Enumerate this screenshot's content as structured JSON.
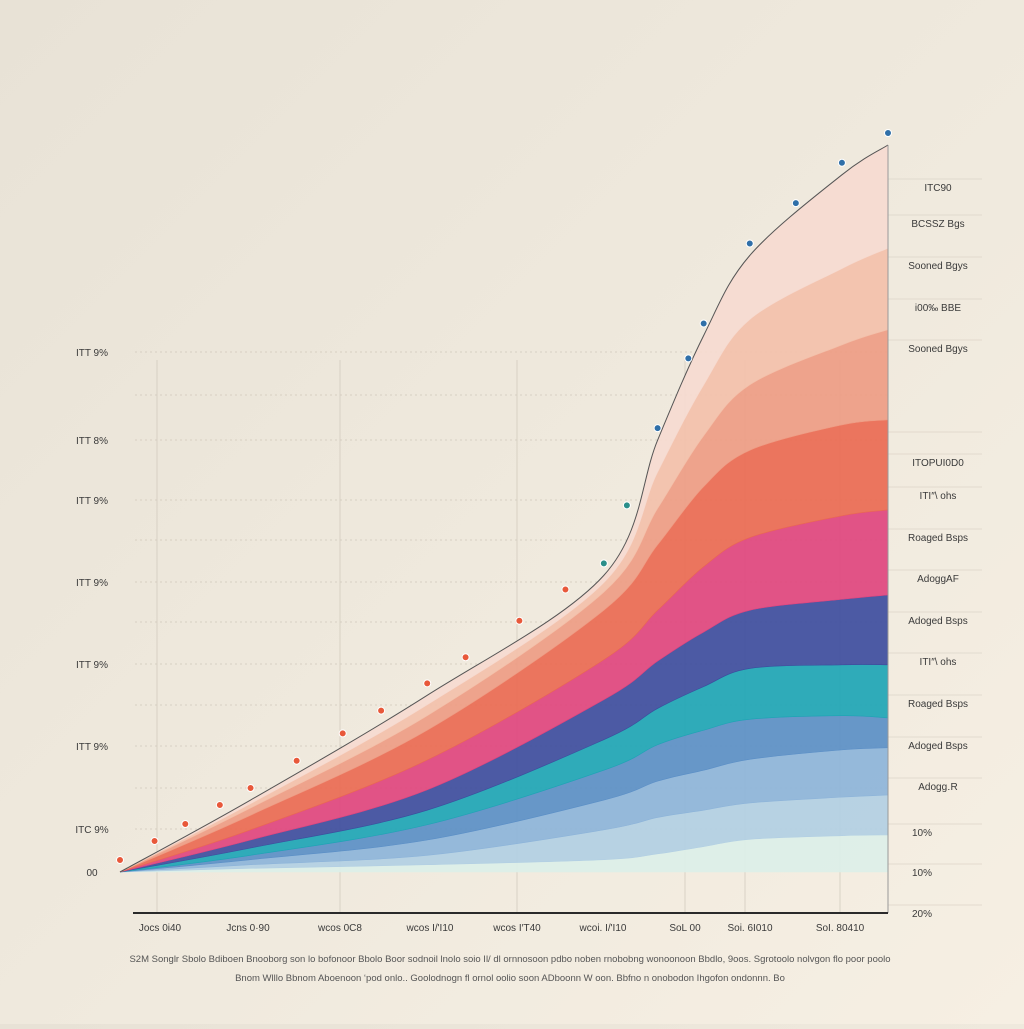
{
  "chart_data": {
    "type": "area",
    "stacked": true,
    "title": "",
    "xlabel": "",
    "ylabel": "",
    "x": [
      0,
      17,
      40,
      63,
      70,
      76,
      82,
      94,
      100
    ],
    "xlim": [
      0,
      100
    ],
    "ylim": [
      0,
      100
    ],
    "grid": true,
    "x_tick_labels": [
      "Jocs 0i40",
      "Jcns 0·90",
      "wcos 0C8",
      "wcos I/'I10",
      "wcos I′T40",
      "wcoi. I/'I10",
      "SoL 00",
      "Soi. 6I010",
      "SoI. 80410"
    ],
    "y_tick_labels_left": [
      "ITT 9%",
      "ITT 8%",
      "ITT 9%",
      "ITT 9%",
      "ITT 9%",
      "ITT 9%",
      "ITC 9%",
      "00"
    ],
    "right_labels": [
      "ITC90",
      "BCSSZ Bgs",
      "Sooned Bgys",
      "i00‰ BBE",
      "Sooned Bgys",
      "ITOPUI0D0",
      "ITI″\\ ohs",
      "Roaged Bsps",
      "AdoggAF",
      "Adoged Bsps",
      "ITI″\\ ohs",
      "Roaged Bsps",
      "Adoged Bsps",
      "Adogg․R",
      "10%",
      "10%",
      "20%"
    ],
    "series": [
      {
        "name": "base",
        "color": "#dcefe8",
        "values": [
          0,
          0.5,
          1,
          1.7,
          2.5,
          3.5,
          4.5,
          5,
          5.1
        ]
      },
      {
        "name": "light-blue",
        "color": "#b2cfe3",
        "values": [
          0,
          0.5,
          1.3,
          4.1,
          5,
          5,
          5,
          5.3,
          5.5
        ]
      },
      {
        "name": "sky-blue",
        "color": "#8db4d9",
        "values": [
          0,
          0.7,
          2.1,
          4.1,
          5,
          5.5,
          6,
          6.5,
          6.5
        ]
      },
      {
        "name": "mid-blue",
        "color": "#5b8fc6",
        "values": [
          0,
          0.6,
          2.1,
          4.1,
          5,
          5.5,
          5.5,
          4.7,
          4.1
        ]
      },
      {
        "name": "teal",
        "color": "#1ea5b5",
        "values": [
          0,
          1,
          2,
          4.2,
          5,
          6,
          7,
          7,
          7.3
        ]
      },
      {
        "name": "navy",
        "color": "#3e4d9e",
        "values": [
          0,
          1.1,
          2.8,
          5.5,
          6.5,
          7.5,
          8,
          9,
          9.6
        ]
      },
      {
        "name": "pink",
        "color": "#e0457e",
        "values": [
          0,
          1.4,
          4.1,
          5.5,
          7,
          9,
          10,
          11.5,
          11.7
        ]
      },
      {
        "name": "red-salmon",
        "color": "#ea6a52",
        "values": [
          0,
          2,
          4.1,
          6.8,
          9,
          11,
          12,
          12.5,
          12.4
        ]
      },
      {
        "name": "salmon",
        "color": "#ee9c84",
        "values": [
          0,
          1,
          2,
          2.5,
          5,
          7,
          9,
          11,
          12.4
        ]
      },
      {
        "name": "peach",
        "color": "#f3c0aa",
        "values": [
          0,
          0.6,
          1.5,
          1.3,
          5,
          7,
          9,
          10.5,
          11.2
        ]
      },
      {
        "name": "pale-pink",
        "color": "#f6dad0",
        "values": [
          0,
          0.5,
          1.3,
          1.0,
          4.4,
          6.8,
          8.8,
          12.9,
          14.2
        ]
      }
    ],
    "markers_x": [
      0,
      4.5,
      8.5,
      13,
      17,
      23,
      29,
      34,
      40,
      45,
      52,
      58,
      63,
      66,
      70,
      74,
      76,
      82,
      88,
      94,
      100
    ]
  },
  "footnote": {
    "line1": "S2M Songlr Sbolo Bdiboen Bnooborg son lo bofonoor Bbolo Boor sodnoil lnolo soio Il/ dl ornnosoon pdbo noben rnobobng wonoonoon Bbdlo, 9oos. Sgrotoolo nolvgon flo poor poolo",
    "line2": "Bnom Wlllo Bbnom Aboenoon ‘pod onlo.. Goolodnogn fl ornol oolio soon ADboonn W oon. Bbfno n onobodon Ihgofon ondonnn. Bo"
  }
}
